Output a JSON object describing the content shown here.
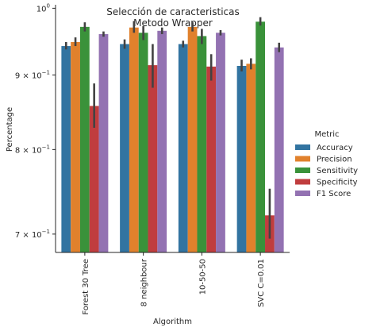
{
  "chart_data": {
    "type": "bar",
    "title": "Selección de caracteristicas\nMetodo Wrapper",
    "xlabel": "Algorithm",
    "ylabel": "Percentage",
    "yscale": "log",
    "ylim": [
      0.68,
      1.003
    ],
    "yticks": [
      {
        "value": 1.0,
        "label": "10",
        "exp": "0"
      },
      {
        "value": 0.9,
        "label": "9 × 10",
        "exp": "−1"
      },
      {
        "value": 0.8,
        "label": "8 × 10",
        "exp": "−1"
      },
      {
        "value": 0.7,
        "label": "7 × 10",
        "exp": "−1"
      }
    ],
    "categories": [
      "Forest 30 Tree",
      "8 neighbour",
      "10-50-50",
      "SVC C=0.01"
    ],
    "legend": {
      "title": "Metric",
      "position": "right"
    },
    "grid": false,
    "series": [
      {
        "name": "Accuracy",
        "color": "#3274a1",
        "values": [
          0.942,
          0.945,
          0.945,
          0.913
        ],
        "err_low": [
          0.937,
          0.938,
          0.94,
          0.905
        ],
        "err_high": [
          0.948,
          0.952,
          0.95,
          0.922
        ]
      },
      {
        "name": "Precision",
        "color": "#e1812c",
        "values": [
          0.948,
          0.97,
          0.971,
          0.916
        ],
        "err_low": [
          0.942,
          0.962,
          0.964,
          0.908
        ],
        "err_high": [
          0.955,
          0.98,
          0.978,
          0.924
        ]
      },
      {
        "name": "Sensitivity",
        "color": "#3a923a",
        "values": [
          0.971,
          0.962,
          0.957,
          0.979
        ],
        "err_low": [
          0.964,
          0.951,
          0.945,
          0.973
        ],
        "err_high": [
          0.978,
          0.972,
          0.968,
          0.986
        ]
      },
      {
        "name": "Specificity",
        "color": "#c03d3e",
        "values": [
          0.857,
          0.914,
          0.912,
          0.721
        ],
        "err_low": [
          0.828,
          0.882,
          0.892,
          0.695
        ],
        "err_high": [
          0.888,
          0.945,
          0.93,
          0.752
        ]
      },
      {
        "name": "F1 Score",
        "color": "#9372b2",
        "values": [
          0.96,
          0.965,
          0.962,
          0.94
        ],
        "err_low": [
          0.956,
          0.96,
          0.958,
          0.933
        ],
        "err_high": [
          0.964,
          0.97,
          0.966,
          0.947
        ]
      }
    ]
  }
}
